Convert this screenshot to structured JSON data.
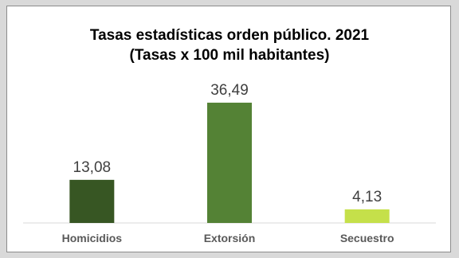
{
  "chart_data": {
    "type": "bar",
    "title_line1": "Tasas estadísticas orden público. 2021",
    "title_line2": "(Tasas x 100 mil habitantes)",
    "categories": [
      "Homicidios",
      "Extorsión",
      "Secuestro"
    ],
    "values": [
      13.08,
      36.49,
      4.13
    ],
    "value_labels": [
      "13,08",
      "36,49",
      "4,13"
    ],
    "colors": [
      "#375623",
      "#548235",
      "#c5e04a"
    ],
    "xlabel": "",
    "ylabel": "",
    "ylim": [
      0,
      40
    ],
    "grid": false,
    "legend": "none"
  }
}
